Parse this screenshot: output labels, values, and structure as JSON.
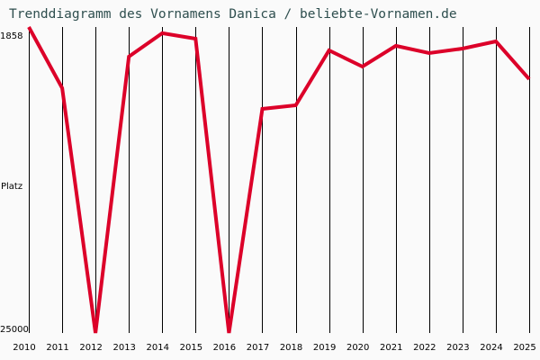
{
  "title": "Trenddiagramm des Vornamens Danica / beliebte-Vornamen.de",
  "y_axis": {
    "top_label": "1858",
    "middle_label": "Platz",
    "bottom_label": "25000"
  },
  "colors": {
    "line": "#dc0029",
    "grid": "#000000",
    "title": "#2f4f4f",
    "background": "#fafafa"
  },
  "chart_data": {
    "type": "line",
    "title": "Trenddiagramm des Vornamens Danica / beliebte-Vornamen.de",
    "xlabel": "",
    "ylabel": "Platz",
    "ylim": [
      25000,
      1858
    ],
    "y_inverted": true,
    "grid": "vertical",
    "categories": [
      "2010",
      "2011",
      "2012",
      "2013",
      "2014",
      "2015",
      "2016",
      "2017",
      "2018",
      "2019",
      "2020",
      "2021",
      "2022",
      "2023",
      "2024",
      "2025"
    ],
    "series": [
      {
        "name": "Danica",
        "values": [
          1858,
          6480,
          25000,
          4100,
          2330,
          2740,
          25000,
          8050,
          7780,
          3630,
          4850,
          3280,
          3830,
          3490,
          2950,
          5800
        ]
      }
    ]
  }
}
